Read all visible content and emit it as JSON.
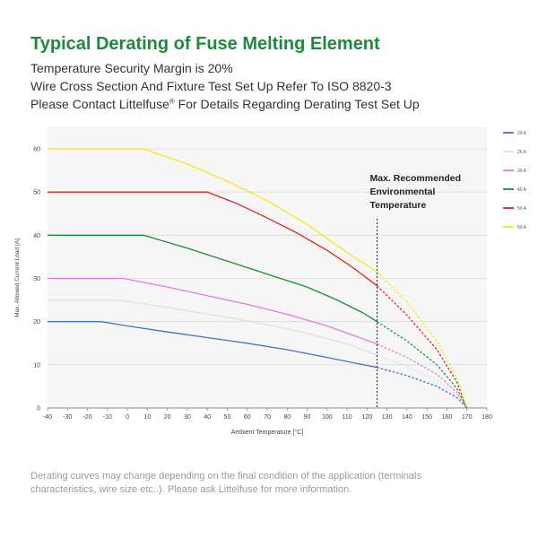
{
  "header": {
    "title": "Typical Derating of Fuse Melting Element",
    "line1": "Temperature Security Margin is 20%",
    "line2": "Wire Cross Section And Fixture Test Set Up Refer To ISO 8820-3",
    "line3_a": "Please Contact Littelfuse",
    "line3_sup": "®",
    "line3_b": " For Details Regarding Derating Test Set Up"
  },
  "footer": {
    "note": "Derating curves may change depending on the final condition of the application (terminals characteristics, wire size etc..). Please ask Littelfuse for more information."
  },
  "chart_data": {
    "type": "line",
    "title": "",
    "xlabel": "Ambient Temperature [°C]",
    "ylabel": "Max. Allowed Current Load [A]",
    "xlim": [
      -40,
      180
    ],
    "ylim": [
      0,
      60
    ],
    "xticks": [
      -40,
      -30,
      -20,
      -10,
      0,
      10,
      20,
      30,
      40,
      50,
      60,
      70,
      80,
      90,
      100,
      110,
      120,
      130,
      140,
      150,
      160,
      170,
      180
    ],
    "yticks": [
      0,
      10,
      20,
      30,
      40,
      50,
      60
    ],
    "grid": true,
    "legend_position": "right",
    "annotation": {
      "lines": [
        "Max. Recommended",
        "Environmental",
        "Temperature"
      ],
      "x": 125
    },
    "series": [
      {
        "name": "20 A",
        "color": "#4472c4",
        "solid": [
          [
            -40,
            20
          ],
          [
            -13,
            20
          ],
          [
            0,
            19
          ],
          [
            20,
            17.6
          ],
          [
            40,
            16.3
          ],
          [
            60,
            15
          ],
          [
            80,
            13.5
          ],
          [
            100,
            11.7
          ],
          [
            115,
            10.3
          ],
          [
            125,
            9.4
          ]
        ],
        "dashed": [
          [
            125,
            9.4
          ],
          [
            140,
            7.5
          ],
          [
            155,
            5
          ],
          [
            165,
            2.4
          ],
          [
            170,
            0
          ]
        ]
      },
      {
        "name": "25 A",
        "color": "#e0e0e0",
        "solid": [
          [
            -40,
            25
          ],
          [
            -5,
            25
          ],
          [
            10,
            24
          ],
          [
            30,
            22.5
          ],
          [
            50,
            21
          ],
          [
            70,
            19.3
          ],
          [
            90,
            17.3
          ],
          [
            110,
            14.8
          ],
          [
            125,
            12.3
          ]
        ],
        "dashed": [
          [
            125,
            12.3
          ],
          [
            140,
            9.6
          ],
          [
            155,
            6.5
          ],
          [
            165,
            3
          ],
          [
            170,
            0
          ]
        ]
      },
      {
        "name": "30 A",
        "color": "#e87ad9",
        "solid": [
          [
            -40,
            30
          ],
          [
            -2,
            30
          ],
          [
            20,
            28
          ],
          [
            40,
            26
          ],
          [
            60,
            24
          ],
          [
            80,
            21.7
          ],
          [
            100,
            19
          ],
          [
            115,
            16.5
          ],
          [
            125,
            14.8
          ]
        ],
        "dashed": [
          [
            125,
            14.8
          ],
          [
            140,
            11.7
          ],
          [
            155,
            7.8
          ],
          [
            165,
            3.6
          ],
          [
            170,
            0
          ]
        ]
      },
      {
        "name": "40 A",
        "color": "#1e8a3c",
        "solid": [
          [
            -40,
            40
          ],
          [
            8,
            40
          ],
          [
            30,
            37
          ],
          [
            50,
            34
          ],
          [
            70,
            31
          ],
          [
            90,
            28
          ],
          [
            105,
            25
          ],
          [
            118,
            22
          ],
          [
            125,
            20
          ]
        ],
        "dashed": [
          [
            125,
            20
          ],
          [
            140,
            15.5
          ],
          [
            155,
            10
          ],
          [
            165,
            4.5
          ],
          [
            170,
            0
          ]
        ]
      },
      {
        "name": "50 A",
        "color": "#e02020",
        "solid": [
          [
            -40,
            50
          ],
          [
            40,
            50
          ],
          [
            55,
            47.3
          ],
          [
            70,
            44
          ],
          [
            85,
            40.5
          ],
          [
            100,
            36.5
          ],
          [
            113,
            32.5
          ],
          [
            125,
            28.3
          ]
        ],
        "dashed": [
          [
            125,
            28.3
          ],
          [
            140,
            21.5
          ],
          [
            155,
            13.5
          ],
          [
            165,
            6
          ],
          [
            170,
            0
          ]
        ]
      },
      {
        "name": "60 A",
        "color": "#f5e81e",
        "solid": [
          [
            -40,
            60
          ],
          [
            8,
            60
          ],
          [
            30,
            56.5
          ],
          [
            50,
            52.5
          ],
          [
            70,
            48
          ],
          [
            90,
            42.5
          ],
          [
            110,
            36
          ],
          [
            125,
            31.5
          ]
        ],
        "dashed": [
          [
            125,
            31.5
          ],
          [
            140,
            24.5
          ],
          [
            155,
            15.5
          ],
          [
            165,
            7
          ],
          [
            170,
            0
          ]
        ]
      }
    ]
  }
}
